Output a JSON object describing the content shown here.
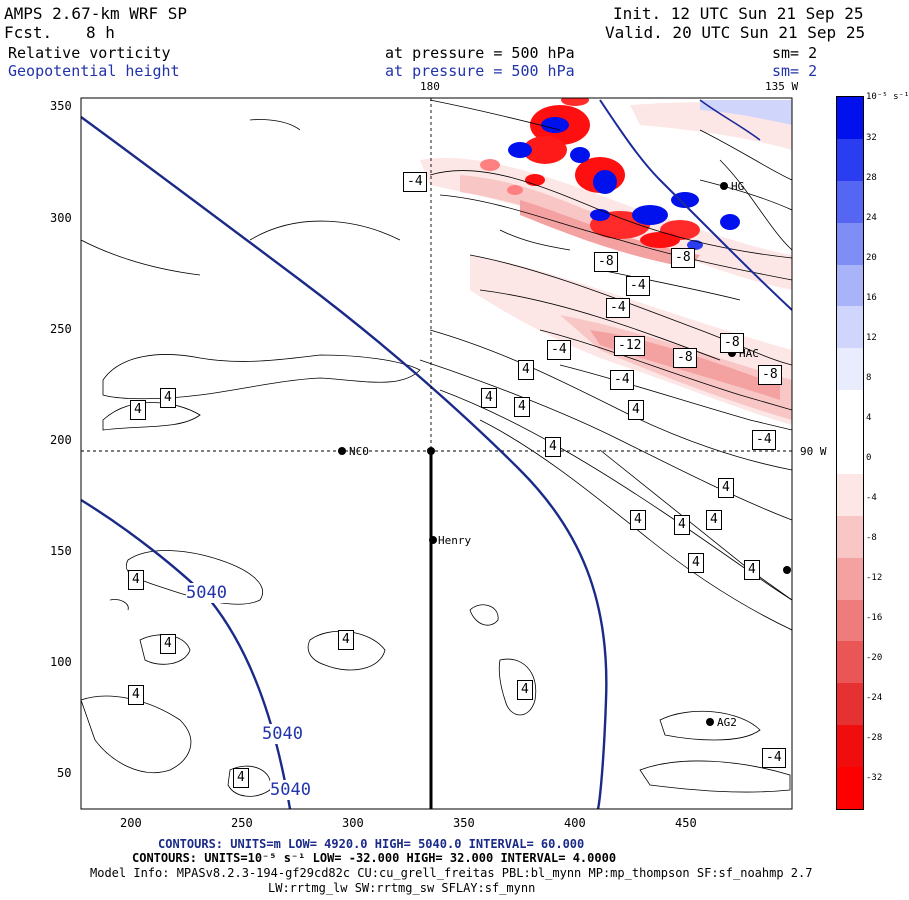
{
  "header": {
    "model": "AMPS 2.67-km WRF SP",
    "init": "Init. 12 UTC Sun 21 Sep 25",
    "fcst_label": "Fcst.",
    "fcst_value": "8 h",
    "valid": "Valid. 20 UTC Sun 21 Sep 25",
    "field1": "Relative vorticity",
    "field1_level": "at pressure =  500 hPa",
    "field1_sm": "sm= 2",
    "field2": "Geopotential height",
    "field2_level": "at pressure =  500 hPa",
    "field2_sm": "sm= 2"
  },
  "map": {
    "lon_top_180": "180",
    "lon_top_135w": "135 W",
    "lon_right_90w": "90 W",
    "x_ticks": [
      "200",
      "250",
      "300",
      "350",
      "400",
      "450"
    ],
    "y_ticks": [
      "350",
      "300",
      "250",
      "200",
      "150",
      "100",
      "50"
    ],
    "stations": [
      "NCO",
      "Henry",
      "HG",
      "HAC",
      "AG2"
    ],
    "height_labels": [
      "5040",
      "5040",
      "5040"
    ],
    "vort_labels_pos": [
      "4",
      "4",
      "4",
      "4",
      "4",
      "4",
      "4",
      "4",
      "4",
      "4",
      "4",
      "4",
      "4",
      "4",
      "4",
      "4",
      "4",
      "4",
      "4"
    ],
    "vort_labels_neg": [
      "-4",
      "-4",
      "-4",
      "-4",
      "-4",
      "-8",
      "-8",
      "-8",
      "-8",
      "-8",
      "-12",
      "-4",
      "-4"
    ]
  },
  "colorbar": {
    "unit": "10⁻⁵ s⁻¹",
    "labels": [
      "32",
      "28",
      "24",
      "20",
      "16",
      "12",
      "8",
      "4",
      "0",
      "-4",
      "-8",
      "-12",
      "-16",
      "-20",
      "-24",
      "-28",
      "-32"
    ],
    "colors": [
      "#0011ee",
      "#2a3df0",
      "#5566f2",
      "#7f8ef5",
      "#a9b4f8",
      "#cfd5fb",
      "#e9ecfd",
      "#ffffff",
      "#ffffff",
      "#fde6e6",
      "#f9c6c6",
      "#f4a1a1",
      "#ef7c7c",
      "#ea5656",
      "#e53131",
      "#f00d0d",
      "#ff0000"
    ]
  },
  "footer": {
    "line1": "CONTOURS:  UNITS=m  LOW=  4920.0        HIGH=  5040.0      INTERVAL=   60.000",
    "line2": "CONTOURS:  UNITS=10⁻⁵ s⁻¹   LOW= -32.000         HIGH=  32.000       INTERVAL=   4.0000",
    "line3": "Model Info: MPASv8.2.3-194-gf29cd82c CU:cu_grell_freitas PBL:bl_mynn MP:mp_thompson SF:sf_noahmp 2.7",
    "line4": "LW:rrtmg_lw SW:rrtmg_sw SFLAY:sf_mynn"
  }
}
